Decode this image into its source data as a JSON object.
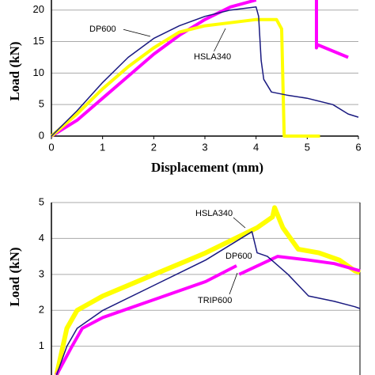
{
  "chart_data": [
    {
      "type": "line",
      "ylabel": "Load (kN)",
      "xlabel": "Displacement (mm)",
      "xlim": [
        0,
        6
      ],
      "xticks": [
        0,
        1,
        2,
        3,
        4,
        5,
        6
      ],
      "ylim": [
        0,
        21.6
      ],
      "yticks": [
        0,
        5,
        10,
        15,
        20
      ],
      "grid": true,
      "annotations": [
        "DP600",
        "HSLA340"
      ],
      "series": [
        {
          "color": "#ff00ff",
          "width": 4,
          "x": [
            0,
            0.5,
            1,
            1.5,
            2,
            2.5,
            3,
            3.5,
            4,
            null,
            5.18,
            5.18,
            5.2,
            5.5,
            5.8
          ],
          "values": [
            0,
            2.5,
            6,
            9.5,
            13,
            16,
            18.5,
            20.5,
            21.6,
            null,
            21.6,
            14,
            14.5,
            13.5,
            12.5
          ]
        },
        {
          "name": "HSLA340",
          "color": "#ffff00",
          "width": 4,
          "x": [
            0,
            0.5,
            1,
            1.5,
            2,
            2.5,
            3,
            3.5,
            4,
            4.4,
            4.5,
            4.55,
            5.25
          ],
          "values": [
            0,
            3.5,
            7.5,
            11,
            14,
            16.5,
            17.5,
            18,
            18.5,
            18.5,
            17,
            0,
            0
          ]
        },
        {
          "name": "DP600",
          "color": "#1a1a80",
          "width": 1.5,
          "x": [
            0,
            0.5,
            1,
            1.5,
            2,
            2.5,
            3,
            3.5,
            4,
            4.05,
            4.1,
            4.15,
            4.3,
            4.6,
            5,
            5.5,
            5.8,
            6
          ],
          "values": [
            0,
            4,
            8.5,
            12.5,
            15.5,
            17.5,
            19,
            20,
            20.5,
            19,
            12,
            9,
            7,
            6.5,
            6,
            5,
            3.5,
            3
          ]
        }
      ]
    },
    {
      "type": "line",
      "ylabel": "Load (kN)",
      "xlim": [
        0,
        6
      ],
      "ylim": [
        0.2,
        5
      ],
      "yticks": [
        1,
        2,
        3,
        4,
        5
      ],
      "grid": true,
      "annotations": [
        "HSLA340",
        "DP600",
        "TRIP600"
      ],
      "series": [
        {
          "name": "HSLA340",
          "color": "#ffff00",
          "width": 6,
          "x": [
            0.1,
            0.3,
            0.5,
            1,
            2,
            3,
            4,
            4.3,
            4.34,
            4.5,
            4.8,
            5.2,
            5.6,
            5.9,
            6
          ],
          "values": [
            0.2,
            1.5,
            2,
            2.4,
            3,
            3.6,
            4.3,
            4.6,
            4.86,
            4.3,
            3.7,
            3.6,
            3.4,
            3.1,
            3.05
          ]
        },
        {
          "name": "TRIP600",
          "color": "#ff00ff",
          "width": 4,
          "x": [
            0.1,
            0.4,
            0.6,
            1,
            2,
            3,
            3.6,
            null,
            3.65,
            4.4,
            5,
            5.5,
            6
          ],
          "values": [
            0.2,
            1,
            1.5,
            1.8,
            2.3,
            2.8,
            3.24,
            null,
            3.0,
            3.5,
            3.4,
            3.3,
            3.1
          ]
        },
        {
          "name": "DP600",
          "color": "#1a1a80",
          "width": 1.5,
          "x": [
            0.1,
            0.3,
            0.5,
            1,
            2,
            3,
            3.9,
            4.0,
            4.2,
            4.6,
            5,
            5.5,
            5.9,
            6
          ],
          "values": [
            0.2,
            1,
            1.5,
            2,
            2.7,
            3.4,
            4.19,
            3.6,
            3.5,
            3,
            2.4,
            2.25,
            2.1,
            2.05
          ]
        }
      ]
    }
  ]
}
